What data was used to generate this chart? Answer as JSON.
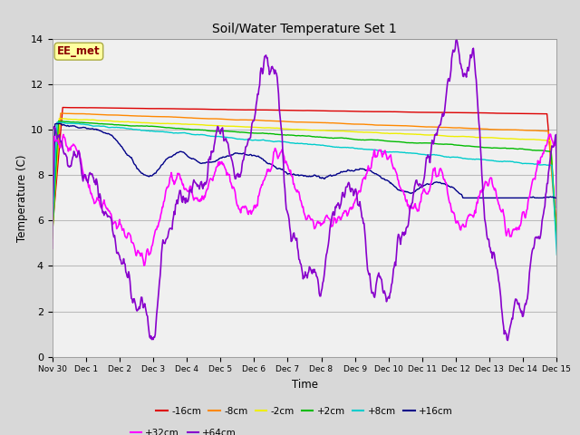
{
  "title": "Soil/Water Temperature Set 1",
  "xlabel": "Time",
  "ylabel": "Temperature (C)",
  "ylim": [
    0,
    14
  ],
  "x_tick_labels": [
    "Nov 30",
    "Dec 1",
    "Dec 2",
    "Dec 3",
    "Dec 4",
    "Dec 5",
    "Dec 6",
    "Dec 7",
    "Dec 8",
    "Dec 9",
    "Dec 10",
    "Dec 11",
    "Dec 12",
    "Dec 13",
    "Dec 14",
    "Dec 15"
  ],
  "watermark_text": "EE_met",
  "watermark_color": "#8B0000",
  "watermark_bg": "#FFFFA0",
  "background_outer": "#D8D8D8",
  "background_plot": "#F0F0F0",
  "grid_color": "#BBBBBB",
  "yticks": [
    0,
    2,
    4,
    6,
    8,
    10,
    12,
    14
  ],
  "lines": [
    {
      "label": "-16cm",
      "color": "#DD0000"
    },
    {
      "label": "-8cm",
      "color": "#FF8800"
    },
    {
      "label": "-2cm",
      "color": "#EEEE00"
    },
    {
      "label": "+2cm",
      "color": "#00BB00"
    },
    {
      "label": "+8cm",
      "color": "#00CCCC"
    },
    {
      "label": "+16cm",
      "color": "#000088"
    },
    {
      "label": "+32cm",
      "color": "#FF00FF"
    },
    {
      "label": "+64cm",
      "color": "#8800CC"
    }
  ]
}
